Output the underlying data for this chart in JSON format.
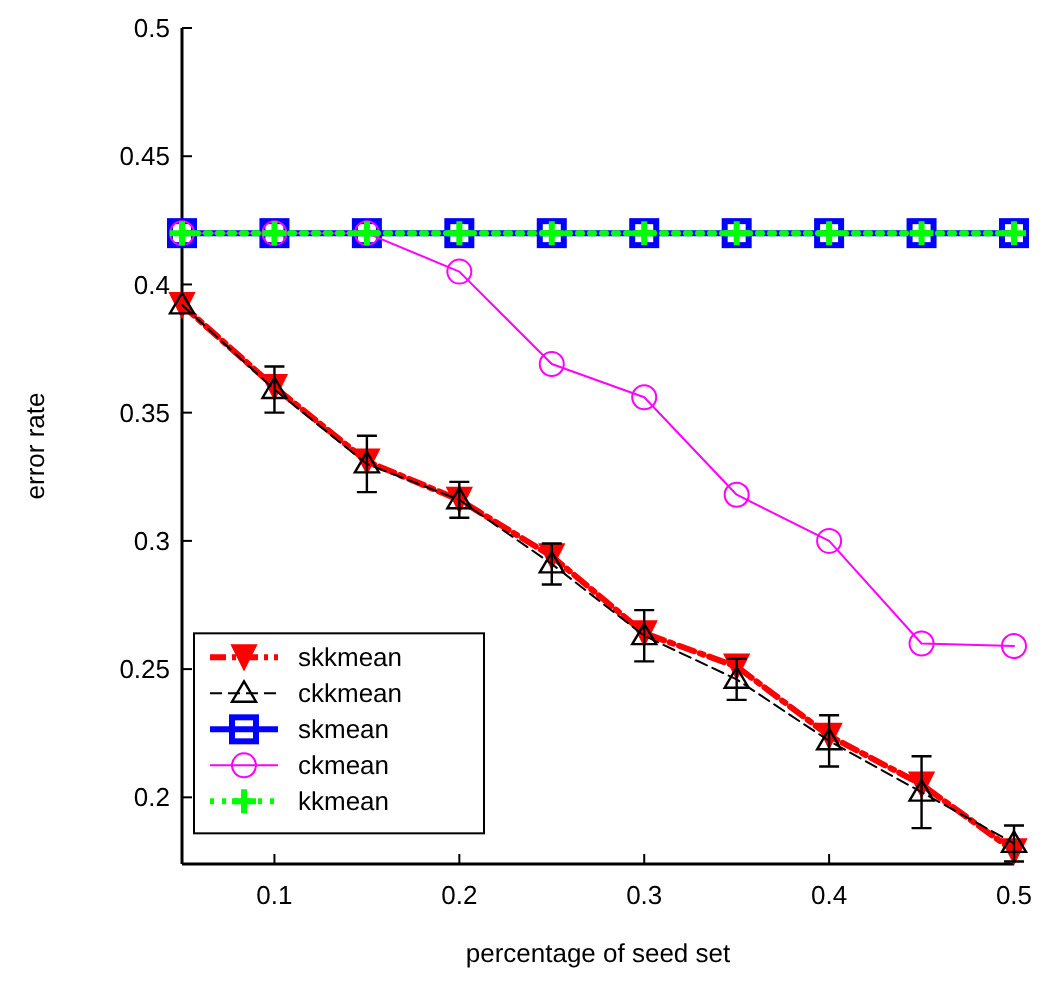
{
  "chart_data": {
    "type": "line",
    "xlabel": "percentage of seed set",
    "ylabel": "error rate",
    "x": [
      0.05,
      0.1,
      0.15,
      0.2,
      0.25,
      0.3,
      0.35,
      0.4,
      0.45,
      0.5
    ],
    "xlim": [
      0.05,
      0.5
    ],
    "xticks": [
      0.1,
      0.2,
      0.3,
      0.4,
      0.5
    ],
    "ylim": [
      0.174,
      0.5
    ],
    "yticks": [
      0.2,
      0.25,
      0.3,
      0.35,
      0.4,
      0.45,
      0.5
    ],
    "grid": false,
    "legend": "bottom left",
    "series": [
      {
        "name": "skkmean",
        "color": "#ff0000",
        "marker": "triangle-down",
        "line_style": "dashdot",
        "values": [
          0.392,
          0.36,
          0.331,
          0.316,
          0.294,
          0.264,
          0.251,
          0.224,
          0.205,
          0.179
        ]
      },
      {
        "name": "ckkmean",
        "color": "#000000",
        "marker": "triangle",
        "line_style": "dashed",
        "values": [
          0.392,
          0.359,
          0.33,
          0.316,
          0.291,
          0.263,
          0.246,
          0.222,
          0.202,
          0.182
        ],
        "errors": [
          null,
          0.009,
          0.011,
          0.007,
          0.008,
          0.01,
          0.008,
          0.01,
          0.014,
          0.007
        ]
      },
      {
        "name": "skmean",
        "color": "#0000ff",
        "marker": "square",
        "line_style": "solid",
        "values": [
          0.42,
          0.42,
          0.42,
          0.42,
          0.42,
          0.42,
          0.42,
          0.42,
          0.42,
          0.42
        ]
      },
      {
        "name": "ckmean",
        "color": "#ff00ff",
        "marker": "circle",
        "line_style": "solid",
        "values": [
          0.42,
          0.42,
          0.42,
          0.405,
          0.369,
          0.356,
          0.318,
          0.3,
          0.26,
          0.259
        ]
      },
      {
        "name": "kkmean",
        "color": "#00ff00",
        "marker": "plus",
        "line_style": "dotted",
        "values": [
          0.42,
          0.42,
          0.42,
          0.42,
          0.42,
          0.42,
          0.42,
          0.42,
          0.42,
          0.42
        ]
      }
    ]
  }
}
